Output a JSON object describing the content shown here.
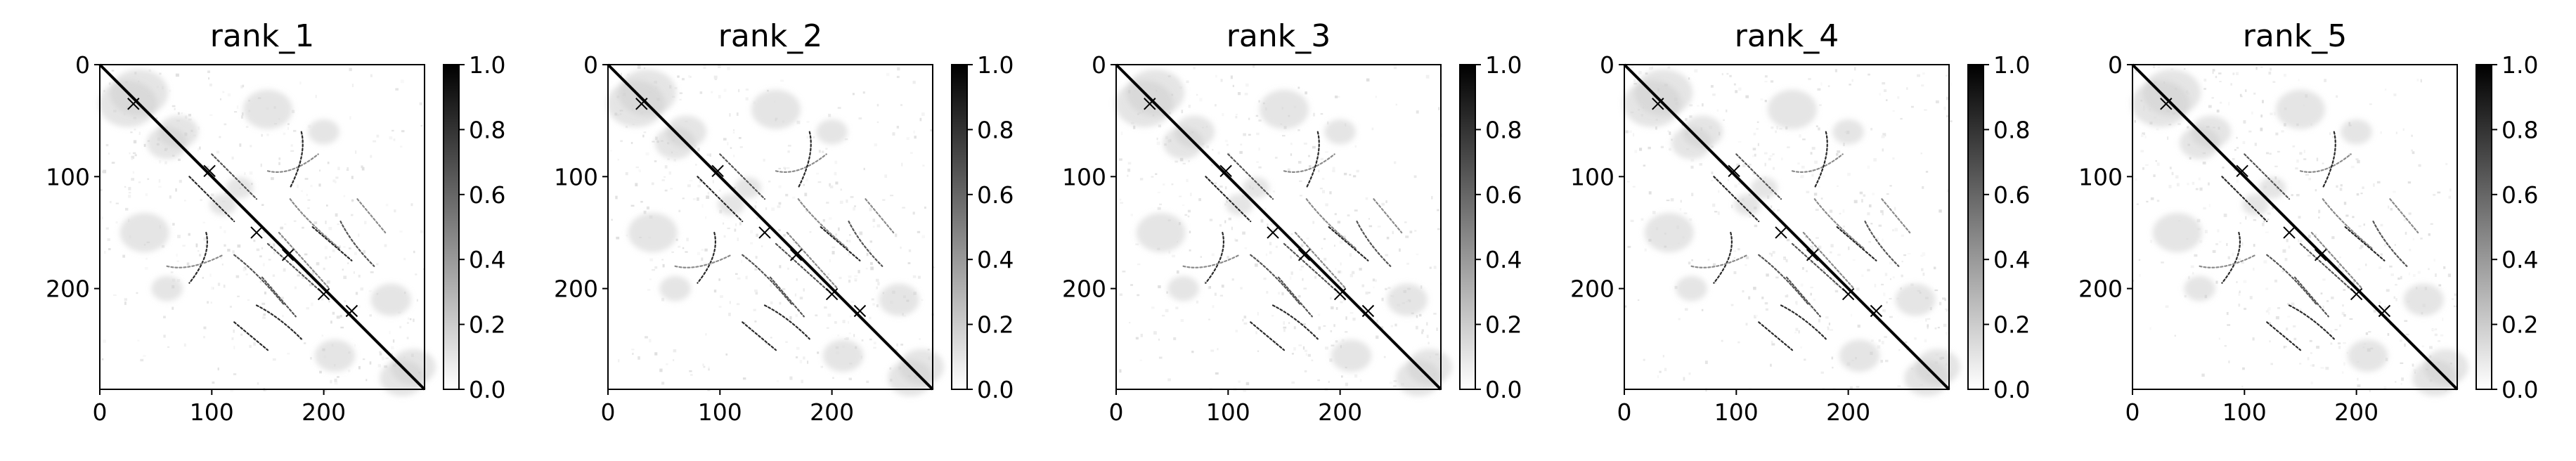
{
  "chart_data": [
    {
      "type": "heatmap",
      "title": "rank_1",
      "xlabel": "",
      "ylabel": "",
      "xlim": [
        0,
        290
      ],
      "ylim": [
        290,
        0
      ],
      "xticks": [
        "0",
        "100",
        "200"
      ],
      "yticks": [
        "0",
        "100",
        "200"
      ],
      "colorbar": {
        "cmap": "gray_r",
        "range": [
          0.0,
          1.0
        ],
        "ticks": [
          "0.0",
          "0.2",
          "0.4",
          "0.6",
          "0.8",
          "1.0"
        ]
      }
    },
    {
      "type": "heatmap",
      "title": "rank_2",
      "xlabel": "",
      "ylabel": "",
      "xlim": [
        0,
        290
      ],
      "ylim": [
        290,
        0
      ],
      "xticks": [
        "0",
        "100",
        "200"
      ],
      "yticks": [
        "0",
        "100",
        "200"
      ],
      "colorbar": {
        "cmap": "gray_r",
        "range": [
          0.0,
          1.0
        ],
        "ticks": [
          "0.0",
          "0.2",
          "0.4",
          "0.6",
          "0.8",
          "1.0"
        ]
      }
    },
    {
      "type": "heatmap",
      "title": "rank_3",
      "xlabel": "",
      "ylabel": "",
      "xlim": [
        0,
        290
      ],
      "ylim": [
        290,
        0
      ],
      "xticks": [
        "0",
        "100",
        "200"
      ],
      "yticks": [
        "0",
        "100",
        "200"
      ],
      "colorbar": {
        "cmap": "gray_r",
        "range": [
          0.0,
          1.0
        ],
        "ticks": [
          "0.0",
          "0.2",
          "0.4",
          "0.6",
          "0.8",
          "1.0"
        ]
      }
    },
    {
      "type": "heatmap",
      "title": "rank_4",
      "xlabel": "",
      "ylabel": "",
      "xlim": [
        0,
        290
      ],
      "ylim": [
        290,
        0
      ],
      "xticks": [
        "0",
        "100",
        "200"
      ],
      "yticks": [
        "0",
        "100",
        "200"
      ],
      "colorbar": {
        "cmap": "gray_r",
        "range": [
          0.0,
          1.0
        ],
        "ticks": [
          "0.0",
          "0.2",
          "0.4",
          "0.6",
          "0.8",
          "1.0"
        ]
      }
    },
    {
      "type": "heatmap",
      "title": "rank_5",
      "xlabel": "",
      "ylabel": "",
      "xlim": [
        0,
        290
      ],
      "ylim": [
        290,
        0
      ],
      "xticks": [
        "0",
        "100",
        "200"
      ],
      "yticks": [
        "0",
        "100",
        "200"
      ],
      "colorbar": {
        "cmap": "gray_r",
        "range": [
          0.0,
          1.0
        ],
        "ticks": [
          "0.0",
          "0.2",
          "0.4",
          "0.6",
          "0.8",
          "1.0"
        ]
      }
    }
  ]
}
